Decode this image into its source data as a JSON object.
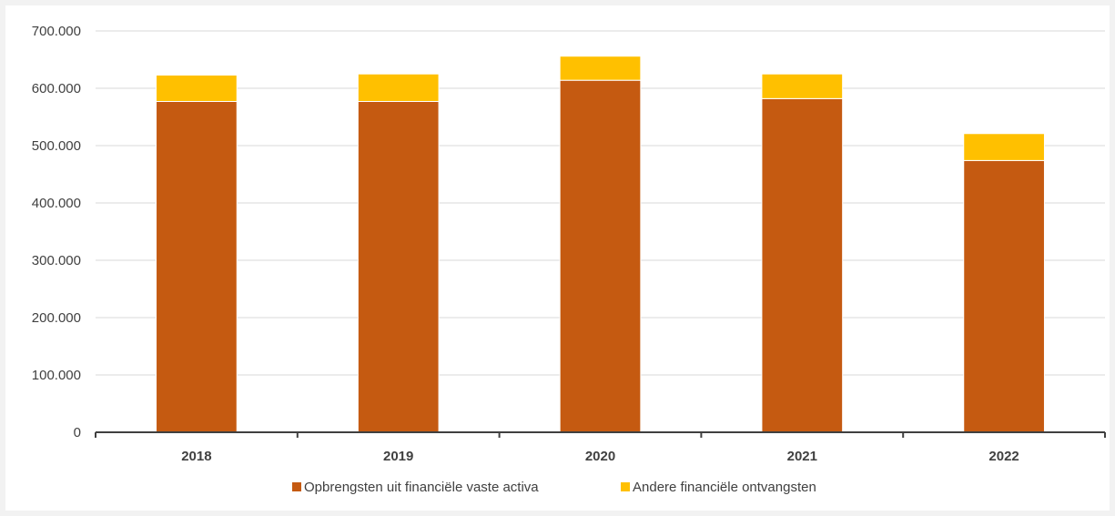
{
  "chart_data": {
    "type": "bar",
    "stacked": true,
    "categories": [
      "2018",
      "2019",
      "2020",
      "2021",
      "2022"
    ],
    "series": [
      {
        "name": "Opbrengsten uit financiële vaste activa",
        "color": "#c55a11",
        "values": [
          577000,
          577000,
          614000,
          582000,
          474000
        ]
      },
      {
        "name": "Andere financiële ontvangsten",
        "color": "#ffc000",
        "values": [
          46000,
          48000,
          42000,
          43000,
          47000
        ]
      }
    ],
    "y_ticks": [
      "0",
      "100.000",
      "200.000",
      "300.000",
      "400.000",
      "500.000",
      "600.000",
      "700.000"
    ],
    "ylim": [
      0,
      700000
    ],
    "grid": true,
    "legend_position": "bottom"
  }
}
